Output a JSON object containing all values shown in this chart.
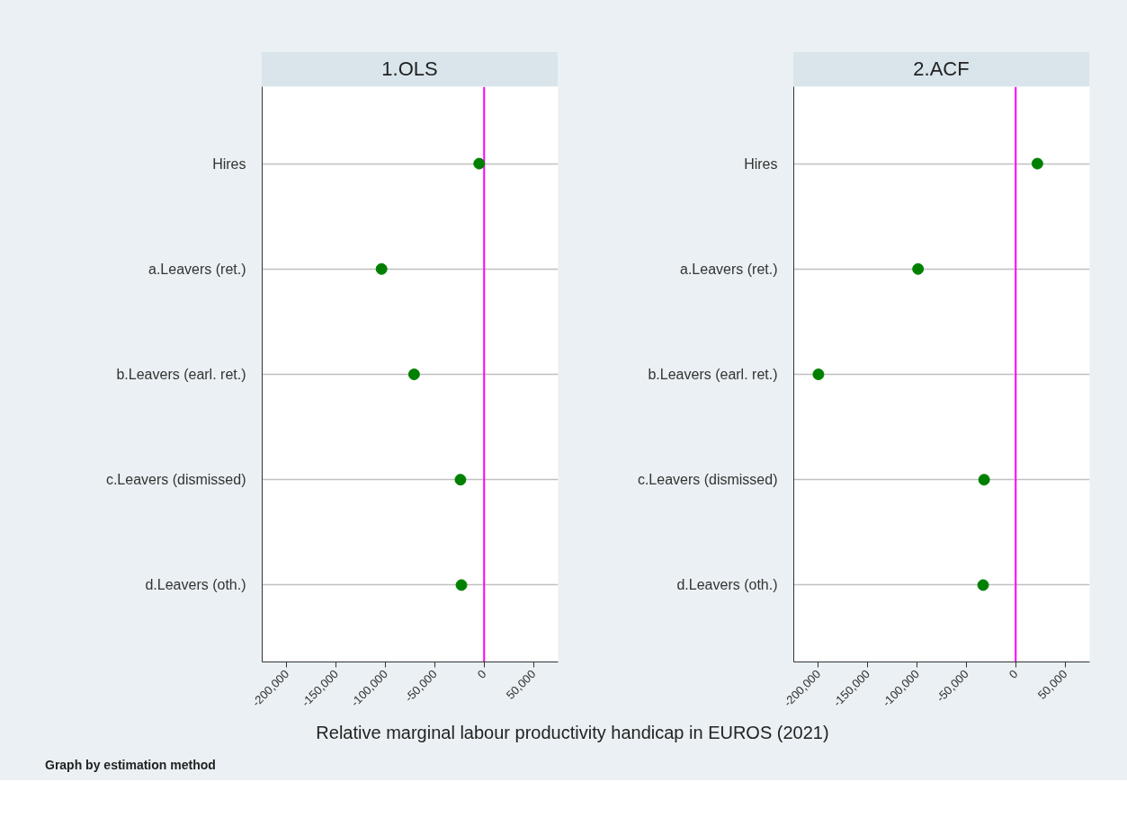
{
  "chart_data": [
    {
      "type": "scatter",
      "orientation": "horizontal",
      "title": "1.OLS",
      "xlabel": "Relative marginal labour productivity handicap in EUROS (2021)",
      "annotations": [
        "Graph by estimation method"
      ],
      "categories": [
        "Hires",
        "a.Leavers (ret.)",
        "b.Leavers (earl. ret.)",
        "c.Leavers (dismissed)",
        "d.Leavers (oth.)"
      ],
      "series": [
        {
          "color": "#008000",
          "values": [
            -5000,
            -104000,
            -71000,
            -24000,
            -23000
          ]
        }
      ],
      "xlim": [
        -225000,
        75000
      ],
      "xticks": [
        {
          "value": -200000,
          "label": "-200,000"
        },
        {
          "value": -150000,
          "label": "-150,000"
        },
        {
          "value": -100000,
          "label": "-100,000"
        },
        {
          "value": -50000,
          "label": "-50,000"
        },
        {
          "value": 0,
          "label": "0"
        },
        {
          "value": 50000,
          "label": "50,000"
        }
      ],
      "ref_lines": [
        {
          "axis": "x",
          "value": 0,
          "color": "#ff00ff"
        }
      ],
      "grid": "y",
      "marker": "circle"
    },
    {
      "type": "scatter",
      "orientation": "horizontal",
      "title": "2.ACF",
      "categories": [
        "Hires",
        "a.Leavers (ret.)",
        "b.Leavers (earl. ret.)",
        "c.Leavers (dismissed)",
        "d.Leavers (oth.)"
      ],
      "series": [
        {
          "color": "#008000",
          "values": [
            22000,
            -99000,
            -200000,
            -32000,
            -33000
          ]
        }
      ],
      "xlim": [
        -225000,
        75000
      ],
      "xticks": [
        {
          "value": -200000,
          "label": "-200,000"
        },
        {
          "value": -150000,
          "label": "-150,000"
        },
        {
          "value": -100000,
          "label": "-100,000"
        },
        {
          "value": -50000,
          "label": "-50,000"
        },
        {
          "value": 0,
          "label": "0"
        },
        {
          "value": 50000,
          "label": "50,000"
        }
      ],
      "ref_lines": [
        {
          "axis": "x",
          "value": 0,
          "color": "#ff00ff"
        }
      ],
      "grid": "y",
      "marker": "circle"
    }
  ]
}
